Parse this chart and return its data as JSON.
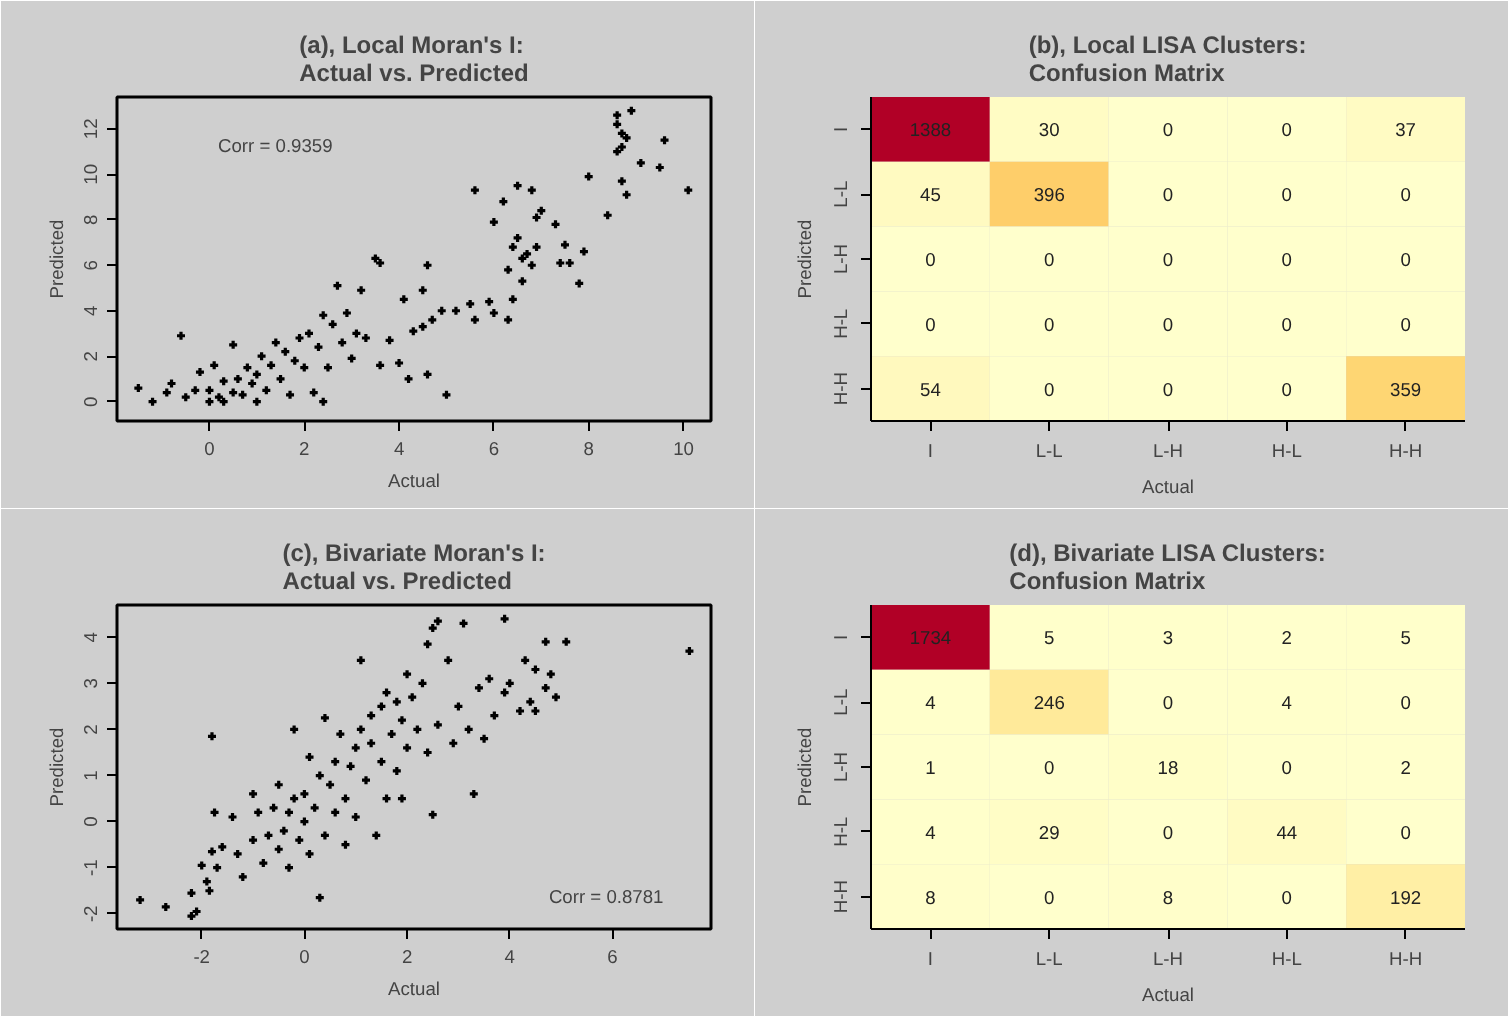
{
  "chart_data": [
    {
      "type": "scatter",
      "title": "(a), Local Moran's I:\nActual vs. Predicted",
      "xlabel": "Actual",
      "ylabel": "Predicted",
      "marker": "cross",
      "color": "#000000",
      "xlim": [
        -1.95,
        10.58
      ],
      "ylim": [
        -0.85,
        13.4
      ],
      "xticks": [
        0,
        2,
        4,
        6,
        8,
        10
      ],
      "yticks": [
        0,
        2,
        4,
        6,
        8,
        10,
        12
      ],
      "annotations": [
        "Corr = 0.9359"
      ],
      "x": [
        -1.5,
        -1.2,
        -0.9,
        -0.8,
        -0.6,
        -0.5,
        -0.3,
        -0.2,
        0,
        0,
        0.1,
        0.2,
        0.3,
        0.3,
        0.5,
        0.5,
        0.6,
        0.7,
        0.8,
        0.9,
        1.0,
        1.0,
        1.1,
        1.2,
        1.3,
        1.4,
        1.5,
        1.6,
        1.7,
        1.8,
        1.9,
        2.0,
        2.1,
        2.2,
        2.3,
        2.4,
        2.4,
        2.5,
        2.6,
        2.7,
        2.8,
        2.9,
        3.0,
        3.1,
        3.2,
        3.3,
        3.5,
        3.6,
        3.6,
        3.8,
        4.0,
        4.1,
        4.2,
        4.3,
        4.5,
        4.6,
        4.6,
        4.7,
        4.5,
        4.9,
        5.0,
        5.2,
        5.5,
        5.6,
        5.6,
        5.9,
        6.0,
        6.0,
        6.2,
        6.3,
        6.3,
        6.4,
        6.4,
        6.5,
        6.5,
        6.6,
        6.6,
        6.7,
        6.8,
        6.8,
        6.9,
        6.9,
        7.0,
        7.3,
        7.4,
        7.5,
        7.6,
        7.8,
        7.9,
        8.0,
        8.4,
        8.6,
        8.6,
        8.6,
        8.7,
        8.7,
        8.7,
        8.8,
        8.8,
        8.9,
        9.1,
        9.5,
        9.6,
        10.1
      ],
      "values": [
        0.6,
        0,
        0.4,
        0.8,
        2.9,
        0.2,
        0.5,
        1.3,
        0,
        0.5,
        1.6,
        0.2,
        0.9,
        0,
        0.4,
        2.5,
        1.0,
        0.3,
        1.5,
        0.8,
        0,
        1.2,
        2.0,
        0.5,
        1.6,
        2.6,
        1.0,
        2.2,
        0.3,
        1.8,
        2.8,
        1.5,
        3.0,
        0.4,
        2.4,
        3.8,
        0,
        1.5,
        3.4,
        5.1,
        2.6,
        3.9,
        1.9,
        3.0,
        4.9,
        2.8,
        6.3,
        6.1,
        1.6,
        2.7,
        1.7,
        4.5,
        1.0,
        3.1,
        3.3,
        6.0,
        1.2,
        3.6,
        4.9,
        4.0,
        0.3,
        4.0,
        4.3,
        3.6,
        9.3,
        4.4,
        7.9,
        3.9,
        8.8,
        5.8,
        3.6,
        4.5,
        6.8,
        9.5,
        7.2,
        6.3,
        5.3,
        6.5,
        9.3,
        6.0,
        8.1,
        6.8,
        8.4,
        7.8,
        6.1,
        6.9,
        6.1,
        5.2,
        6.6,
        9.9,
        8.2,
        11.0,
        12.2,
        12.6,
        9.7,
        11.2,
        11.8,
        9.1,
        11.6,
        12.8,
        10.5,
        10.3,
        11.5,
        9.3
      ]
    },
    {
      "type": "heatmap",
      "title": "(b), Local LISA Clusters:\nConfusion Matrix",
      "xlabel": "Actual",
      "ylabel": "Predicted",
      "data_labels": true,
      "categories": [
        "I",
        "L-L",
        "L-H",
        "H-L",
        "H-H"
      ],
      "y_categories": [
        "I",
        "L-L",
        "L-H",
        "H-L",
        "H-H"
      ],
      "cells": [
        [
          1388,
          30,
          0,
          0,
          37
        ],
        [
          45,
          396,
          0,
          0,
          0
        ],
        [
          0,
          0,
          0,
          0,
          0
        ],
        [
          0,
          0,
          0,
          0,
          0
        ],
        [
          54,
          0,
          0,
          0,
          359
        ]
      ]
    },
    {
      "type": "scatter",
      "title": "(c), Bivariate Moran's I:\nActual vs. Predicted",
      "xlabel": "Actual",
      "ylabel": "Predicted",
      "marker": "cross",
      "color": "#000000",
      "xlim": [
        -3.65,
        7.92
      ],
      "ylim": [
        -2.33,
        4.7
      ],
      "xticks": [
        -2,
        0,
        2,
        4,
        6
      ],
      "yticks": [
        -2,
        -1,
        0,
        1,
        2,
        3,
        4
      ],
      "annotations": [
        "Corr = 0.8781"
      ],
      "x": [
        -3.2,
        -2.7,
        -2.2,
        -2.1,
        -2.2,
        -2.0,
        -1.9,
        -1.85,
        -1.8,
        -1.8,
        -1.75,
        -1.7,
        -1.6,
        -1.4,
        -1.3,
        -1.2,
        -1.0,
        -1.0,
        -0.9,
        -0.8,
        -0.7,
        -0.6,
        -0.5,
        -0.5,
        -0.4,
        -0.3,
        -0.3,
        -0.2,
        -0.2,
        -0.1,
        0,
        0,
        0.1,
        0.1,
        0.2,
        0.3,
        0.3,
        0.4,
        0.4,
        0.5,
        0.6,
        0.6,
        0.7,
        0.8,
        0.8,
        0.9,
        1.0,
        1.0,
        1.1,
        1.1,
        1.2,
        1.3,
        1.3,
        1.4,
        1.5,
        1.5,
        1.6,
        1.6,
        1.7,
        1.8,
        1.8,
        1.9,
        1.9,
        2.0,
        2.0,
        2.1,
        2.2,
        2.3,
        2.4,
        2.4,
        2.5,
        2.5,
        2.6,
        2.6,
        2.8,
        2.9,
        3.0,
        3.1,
        3.2,
        3.3,
        3.4,
        3.5,
        3.6,
        3.7,
        3.9,
        3.9,
        4.0,
        4.2,
        4.3,
        4.4,
        4.5,
        4.5,
        4.7,
        4.7,
        4.8,
        4.9,
        5.1,
        7.5
      ],
      "values": [
        -1.7,
        -1.85,
        -2.05,
        -1.95,
        -1.55,
        -0.95,
        -1.3,
        -1.5,
        -0.65,
        1.85,
        0.2,
        -1.0,
        -0.55,
        0.1,
        -0.7,
        -1.2,
        -0.4,
        0.6,
        0.2,
        -0.9,
        -0.3,
        0.3,
        -0.6,
        0.8,
        -0.2,
        0.2,
        -1.0,
        2.0,
        0.5,
        -0.4,
        0,
        0.6,
        -0.7,
        1.4,
        0.3,
        1.0,
        -1.65,
        -0.3,
        2.25,
        0.8,
        0.2,
        1.3,
        1.9,
        0.5,
        -0.5,
        1.2,
        1.6,
        0.1,
        3.5,
        2.0,
        0.9,
        1.7,
        2.3,
        -0.3,
        1.3,
        2.5,
        0.5,
        2.8,
        1.9,
        2.6,
        1.1,
        2.2,
        0.5,
        3.2,
        1.6,
        2.7,
        2.0,
        3.0,
        3.85,
        1.5,
        4.2,
        0.15,
        4.35,
        2.1,
        3.5,
        1.7,
        2.5,
        4.3,
        2.0,
        0.6,
        2.9,
        1.8,
        3.1,
        2.3,
        4.4,
        2.8,
        3.0,
        2.4,
        3.5,
        2.6,
        3.3,
        2.4,
        3.9,
        2.9,
        3.2,
        2.7,
        3.9,
        3.7
      ]
    },
    {
      "type": "heatmap",
      "title": "(d), Bivariate LISA Clusters:\nConfusion Matrix",
      "xlabel": "Actual",
      "ylabel": "Predicted",
      "data_labels": true,
      "categories": [
        "I",
        "L-L",
        "L-H",
        "H-L",
        "H-H"
      ],
      "y_categories": [
        "I",
        "L-L",
        "L-H",
        "H-L",
        "H-H"
      ],
      "cells": [
        [
          1734,
          5,
          3,
          2,
          5
        ],
        [
          4,
          246,
          0,
          4,
          0
        ],
        [
          1,
          0,
          18,
          0,
          2
        ],
        [
          4,
          29,
          0,
          44,
          0
        ],
        [
          8,
          0,
          8,
          0,
          192
        ]
      ]
    }
  ]
}
